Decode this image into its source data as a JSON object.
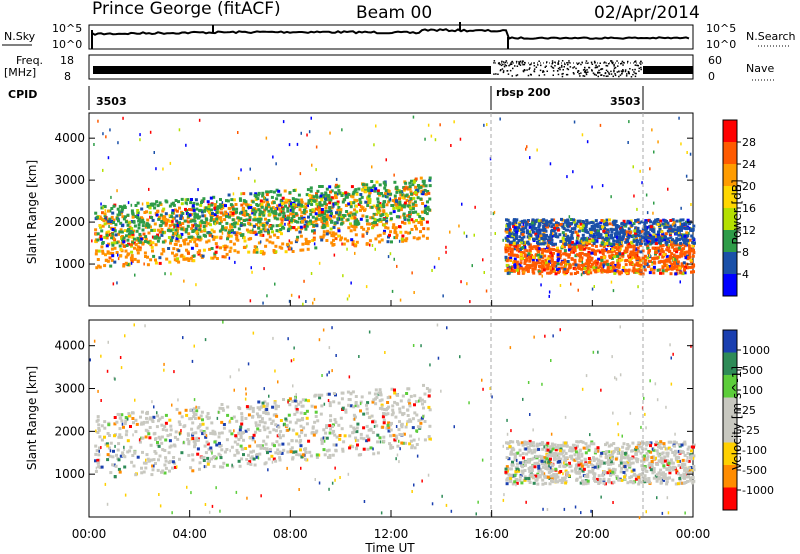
{
  "header": {
    "radar": "Prince George (fitACF)",
    "beam": "Beam 00",
    "date": "02/Apr/2014"
  },
  "top_panels": {
    "nsky": {
      "label": "N.Sky",
      "yticks": [
        "10^5",
        "10^0"
      ],
      "right_label": "N.Search",
      "right_yticks": [
        "10^5",
        "10^0"
      ]
    },
    "freq": {
      "label": "Freq.",
      "unit": "[MHz]",
      "yticks": [
        "18",
        "8"
      ],
      "right_label": "Nave",
      "right_yticks": [
        "60",
        "0"
      ]
    },
    "cpid": {
      "label": "CPID",
      "segments": [
        "3503",
        "rbsp 200",
        "3503"
      ],
      "segment_times_h": [
        0,
        16,
        22
      ]
    }
  },
  "chart_data": [
    {
      "type": "heatmap",
      "panel": "power",
      "xlabel": "",
      "ylabel": "Slant Range [km]",
      "xlim": [
        0,
        24
      ],
      "ylim": [
        0,
        4600
      ],
      "yticks": [
        1000,
        2000,
        3000,
        4000
      ],
      "colorbar": {
        "label": "Power [dB]",
        "ticks": [
          "28",
          "24",
          "20",
          "16",
          "12",
          "8",
          "4"
        ],
        "colors": [
          "#ff0000",
          "#ff5a00",
          "#ff9c00",
          "#ffd700",
          "#b4e000",
          "#2e9c48",
          "#1a50a8",
          "#0000ff"
        ]
      },
      "echo_bands": [
        {
          "t0": 0.2,
          "t1": 13.5,
          "r0": 900,
          "r1": 2200,
          "color": "#ff8c00"
        },
        {
          "t0": 0.2,
          "t1": 13.5,
          "r0": 1400,
          "r1": 2400,
          "color": "#2e9c48"
        },
        {
          "t0": 16.5,
          "t1": 24,
          "r0": 800,
          "r1": 1500,
          "color": "#ff5a00"
        },
        {
          "t0": 16.5,
          "t1": 24,
          "r0": 1500,
          "r1": 2100,
          "color": "#1a50a8"
        }
      ]
    },
    {
      "type": "heatmap",
      "panel": "velocity",
      "xlabel": "Time UT",
      "ylabel": "Slant Range [km]",
      "xlim": [
        0,
        24
      ],
      "ylim": [
        0,
        4600
      ],
      "xticks": [
        "00:00",
        "04:00",
        "08:00",
        "12:00",
        "16:00",
        "20:00",
        "00:00"
      ],
      "yticks": [
        1000,
        2000,
        3000,
        4000
      ],
      "colorbar": {
        "label": "Velocity [m s^-1]",
        "ticks": [
          "1000",
          "500",
          "100",
          "25",
          "-25",
          "-100",
          "-500",
          "-1000"
        ],
        "colors": [
          "#1a3fb0",
          "#2e8b57",
          "#5ccd3a",
          "#c8c8c0",
          "#c8c8c0",
          "#ffd000",
          "#ff8c00",
          "#ff0000"
        ]
      },
      "echo_bands": [
        {
          "t0": 0.2,
          "t1": 13.5,
          "r0": 900,
          "r1": 2400,
          "color": "#c8c8c0"
        },
        {
          "t0": 16.5,
          "t1": 24,
          "r0": 800,
          "r1": 1800,
          "color": "#c8c8c0"
        }
      ]
    }
  ]
}
